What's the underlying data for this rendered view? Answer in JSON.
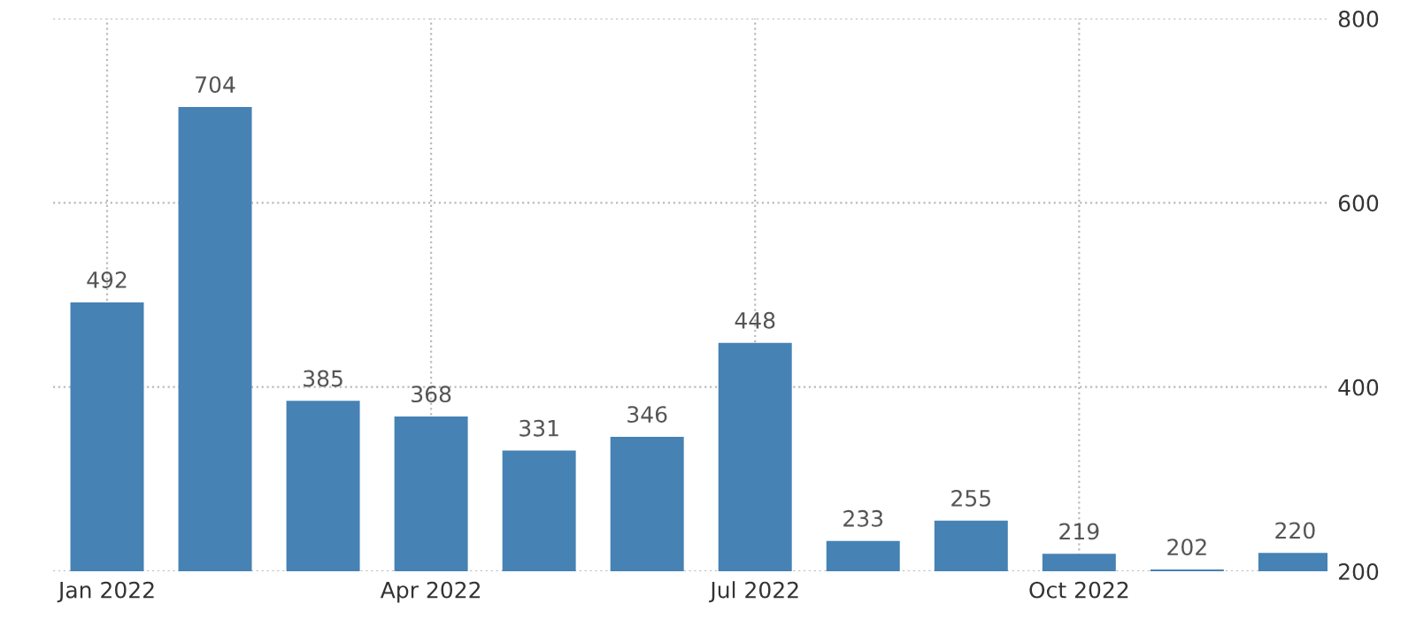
{
  "chart_data": {
    "type": "bar",
    "categories": [
      "Jan 2022",
      null,
      null,
      "Apr 2022",
      null,
      null,
      "Jul 2022",
      null,
      null,
      "Oct 2022",
      null,
      null
    ],
    "values": [
      492,
      704,
      385,
      368,
      331,
      346,
      448,
      233,
      255,
      219,
      202,
      220
    ],
    "color": "#4682b4",
    "ylim": [
      200,
      800
    ],
    "yticks": [
      200,
      400,
      600,
      800
    ],
    "grid": true,
    "data_labels": true
  }
}
